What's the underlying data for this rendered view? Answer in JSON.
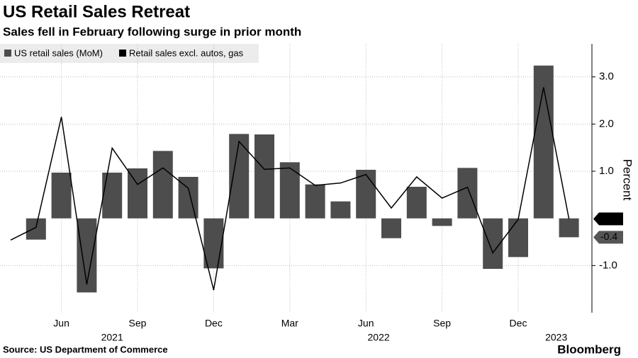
{
  "chart_data": {
    "type": "bar_line",
    "title": "US Retail Sales Retreat",
    "subtitle": "Sales fell in February following surge in prior month",
    "y_label": "Percent",
    "source": "Source: US Department of Commerce",
    "brand": "Bloomberg",
    "categories": [
      null,
      null,
      "Jun",
      null,
      null,
      "Sep",
      null,
      null,
      "Dec",
      null,
      null,
      "Mar",
      null,
      null,
      "Jun",
      null,
      null,
      "Sep",
      null,
      null,
      "Dec",
      null,
      null
    ],
    "x_groups": [
      "2021",
      "2022",
      "2023"
    ],
    "series": [
      {
        "name": "US retail sales (MoM)",
        "color": "#4d4d4d",
        "kind": "bar",
        "values": [
          null,
          -0.45,
          0.97,
          -1.57,
          0.97,
          1.06,
          1.43,
          0.88,
          -1.06,
          1.79,
          1.78,
          1.19,
          0.72,
          0.36,
          1.03,
          -0.42,
          0.67,
          -0.16,
          1.07,
          -1.07,
          -0.82,
          3.24,
          -0.4
        ],
        "value_labels": [
          null,
          null,
          null,
          null,
          null,
          null,
          null,
          null,
          null,
          null,
          null,
          null,
          null,
          null,
          null,
          null,
          null,
          null,
          null,
          null,
          null,
          null,
          "-0.4"
        ]
      },
      {
        "name": "Retail sales excl. autos, gas",
        "color": "#000000",
        "kind": "line",
        "values": [
          -0.46,
          -0.19,
          2.15,
          -1.4,
          1.49,
          0.72,
          1.07,
          0.64,
          -1.52,
          1.63,
          1.04,
          1.07,
          0.7,
          0.75,
          0.93,
          0.22,
          0.88,
          0.43,
          0.66,
          -0.73,
          -0.02,
          2.78,
          -0.01
        ],
        "value_labels": [
          null,
          null,
          null,
          null,
          null,
          null,
          null,
          null,
          null,
          null,
          null,
          null,
          null,
          null,
          null,
          null,
          null,
          null,
          null,
          null,
          null,
          null,
          "-0.0"
        ]
      }
    ],
    "ylim": [
      -2,
      3.7
    ],
    "yticks": [
      {
        "value": -1,
        "label": "-1.0"
      },
      {
        "value": 1,
        "label": "1.0"
      },
      {
        "value": 2,
        "label": "2.0"
      },
      {
        "value": 3,
        "label": "3.0"
      }
    ],
    "grid": true
  }
}
